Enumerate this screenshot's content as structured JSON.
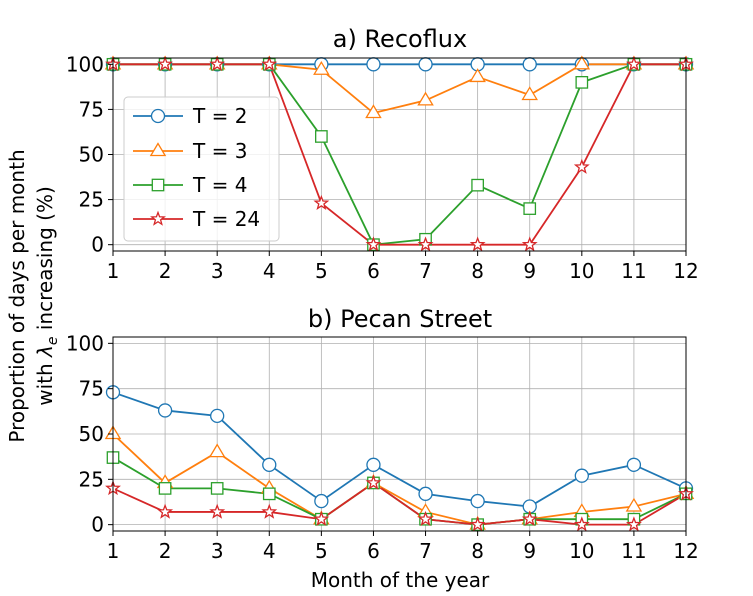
{
  "shared": {
    "ylabel_line1": "Proportion of days per month",
    "ylabel_line2_prefix": "with ",
    "ylabel_symbol": "λ",
    "ylabel_subscript": "e",
    "ylabel_line2_suffix": " increasing (%)",
    "xlabel": "Month of the year"
  },
  "legend": [
    {
      "label": "T = 2",
      "color": "#1f77b4",
      "marker": "circle"
    },
    {
      "label": "T = 3",
      "color": "#ff7f0e",
      "marker": "triangle"
    },
    {
      "label": "T = 4",
      "color": "#2ca02c",
      "marker": "square"
    },
    {
      "label": "T = 24",
      "color": "#d62728",
      "marker": "star"
    }
  ],
  "chart_data": [
    {
      "type": "line",
      "title": "a) Recoflux",
      "x": [
        1,
        2,
        3,
        4,
        5,
        6,
        7,
        8,
        9,
        10,
        11,
        12
      ],
      "xlim": [
        1,
        12
      ],
      "ylim": [
        -3.5,
        103.5
      ],
      "xticks": [
        1,
        2,
        3,
        4,
        5,
        6,
        7,
        8,
        9,
        10,
        11,
        12
      ],
      "yticks": [
        0,
        25,
        50,
        75,
        100
      ],
      "grid": true,
      "legend_position": "center-left",
      "series": [
        {
          "name": "T = 2",
          "marker": "circle",
          "color": "#1f77b4",
          "values": [
            100,
            100,
            100,
            100,
            100,
            100,
            100,
            100,
            100,
            100,
            100,
            100
          ]
        },
        {
          "name": "T = 3",
          "marker": "triangle",
          "color": "#ff7f0e",
          "values": [
            100,
            100,
            100,
            100,
            97,
            73,
            80,
            93,
            83,
            100,
            100,
            100
          ]
        },
        {
          "name": "T = 4",
          "marker": "square",
          "color": "#2ca02c",
          "values": [
            100,
            100,
            100,
            100,
            60,
            0,
            3,
            33,
            20,
            90,
            100,
            100
          ]
        },
        {
          "name": "T = 24",
          "marker": "star",
          "color": "#d62728",
          "values": [
            100,
            100,
            100,
            100,
            23,
            0,
            0,
            0,
            0,
            43,
            100,
            100
          ]
        }
      ]
    },
    {
      "type": "line",
      "title": "b) Pecan Street",
      "x": [
        1,
        2,
        3,
        4,
        5,
        6,
        7,
        8,
        9,
        10,
        11,
        12
      ],
      "xlim": [
        1,
        12
      ],
      "ylim": [
        -3.5,
        103.5
      ],
      "xticks": [
        1,
        2,
        3,
        4,
        5,
        6,
        7,
        8,
        9,
        10,
        11,
        12
      ],
      "yticks": [
        0,
        25,
        50,
        75,
        100
      ],
      "grid": true,
      "series": [
        {
          "name": "T = 2",
          "marker": "circle",
          "color": "#1f77b4",
          "values": [
            73,
            63,
            60,
            33,
            13,
            33,
            17,
            13,
            10,
            27,
            33,
            20
          ]
        },
        {
          "name": "T = 3",
          "marker": "triangle",
          "color": "#ff7f0e",
          "values": [
            50,
            23,
            40,
            20,
            3,
            23,
            7,
            0,
            3,
            7,
            10,
            17
          ]
        },
        {
          "name": "T = 4",
          "marker": "square",
          "color": "#2ca02c",
          "values": [
            37,
            20,
            20,
            17,
            3,
            23,
            3,
            0,
            3,
            3,
            3,
            17
          ]
        },
        {
          "name": "T = 24",
          "marker": "star",
          "color": "#d62728",
          "values": [
            20,
            7,
            7,
            7,
            3,
            23,
            3,
            0,
            3,
            0,
            0,
            17
          ]
        }
      ]
    }
  ]
}
